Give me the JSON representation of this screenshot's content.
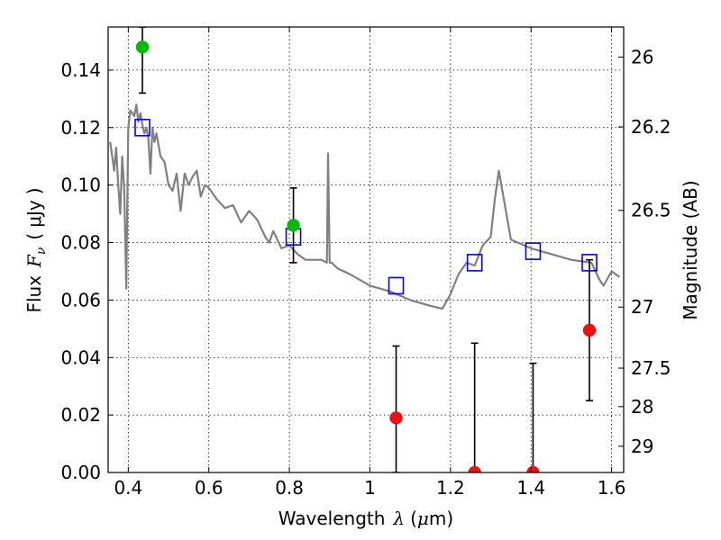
{
  "chart_data": {
    "type": "scatter",
    "xlabel": "Wavelength",
    "xlabel_symbol": "λ",
    "xlabel_unit_prefix": "μ",
    "xlabel_unit": "m",
    "ylabel": "Flux",
    "ylabel_symbol": "F",
    "ylabel_subscript": "ν",
    "ylabel_unit": "μJy",
    "y2label": "Magnitude (AB)",
    "xlim": [
      0.35,
      1.63
    ],
    "ylim": [
      0.0,
      0.155
    ],
    "grid": true,
    "x_ticks": [
      {
        "value": 0.4,
        "label": "0.4"
      },
      {
        "value": 0.6,
        "label": "0.6"
      },
      {
        "value": 0.8,
        "label": "0.8"
      },
      {
        "value": 1.0,
        "label": "1"
      },
      {
        "value": 1.2,
        "label": "1.2"
      },
      {
        "value": 1.4,
        "label": "1.4"
      },
      {
        "value": 1.6,
        "label": "1.6"
      }
    ],
    "y_ticks": [
      {
        "value": 0.0,
        "label": "0.00"
      },
      {
        "value": 0.02,
        "label": "0.02"
      },
      {
        "value": 0.04,
        "label": "0.04"
      },
      {
        "value": 0.06,
        "label": "0.06"
      },
      {
        "value": 0.08,
        "label": "0.08"
      },
      {
        "value": 0.1,
        "label": "0.10"
      },
      {
        "value": 0.12,
        "label": "0.12"
      },
      {
        "value": 0.14,
        "label": "0.14"
      }
    ],
    "y2_ticks": [
      {
        "mag": 26,
        "label": "26"
      },
      {
        "mag": 26.2,
        "label": "26.2"
      },
      {
        "mag": 26.5,
        "label": "26.5"
      },
      {
        "mag": 27,
        "label": "27"
      },
      {
        "mag": 27.5,
        "label": "27.5"
      },
      {
        "mag": 28,
        "label": "28"
      },
      {
        "mag": 29,
        "label": "29"
      }
    ],
    "series": [
      {
        "kind": "line",
        "color": "#808080",
        "x": [
          0.355,
          0.36,
          0.365,
          0.37,
          0.375,
          0.38,
          0.385,
          0.39,
          0.395,
          0.4,
          0.405,
          0.41,
          0.415,
          0.42,
          0.425,
          0.43,
          0.435,
          0.44,
          0.445,
          0.45,
          0.455,
          0.46,
          0.465,
          0.47,
          0.48,
          0.49,
          0.5,
          0.51,
          0.52,
          0.53,
          0.54,
          0.55,
          0.56,
          0.57,
          0.58,
          0.59,
          0.6,
          0.62,
          0.64,
          0.66,
          0.68,
          0.7,
          0.72,
          0.74,
          0.75,
          0.76,
          0.78,
          0.8,
          0.82,
          0.84,
          0.86,
          0.88,
          0.893,
          0.896,
          0.9,
          0.905,
          0.92,
          0.95,
          1.0,
          1.05,
          1.1,
          1.15,
          1.18,
          1.2,
          1.22,
          1.24,
          1.26,
          1.28,
          1.3,
          1.31,
          1.32,
          1.35,
          1.4,
          1.45,
          1.5,
          1.55,
          1.57,
          1.58,
          1.6,
          1.62
        ],
        "y": [
          0.115,
          0.11,
          0.105,
          0.113,
          0.1,
          0.09,
          0.11,
          0.098,
          0.064,
          0.12,
          0.126,
          0.125,
          0.124,
          0.128,
          0.122,
          0.125,
          0.121,
          0.118,
          0.12,
          0.116,
          0.104,
          0.12,
          0.115,
          0.118,
          0.11,
          0.108,
          0.1,
          0.098,
          0.104,
          0.091,
          0.104,
          0.1,
          0.103,
          0.105,
          0.096,
          0.1,
          0.099,
          0.095,
          0.092,
          0.093,
          0.087,
          0.091,
          0.088,
          0.082,
          0.08,
          0.084,
          0.078,
          0.079,
          0.076,
          0.074,
          0.074,
          0.074,
          0.073,
          0.111,
          0.073,
          0.073,
          0.071,
          0.069,
          0.065,
          0.063,
          0.06,
          0.058,
          0.057,
          0.062,
          0.069,
          0.073,
          0.072,
          0.079,
          0.082,
          0.095,
          0.105,
          0.081,
          0.078,
          0.076,
          0.074,
          0.073,
          0.067,
          0.065,
          0.07,
          0.068
        ]
      },
      {
        "kind": "marker",
        "marker": "open-square",
        "color": "#0000ff",
        "x": [
          0.435,
          0.81,
          1.065,
          1.26,
          1.405,
          1.545
        ],
        "y": [
          0.12,
          0.082,
          0.065,
          0.073,
          0.077,
          0.073
        ]
      },
      {
        "kind": "marker",
        "marker": "filled-circle",
        "color": "#00bb00",
        "x": [
          0.435,
          0.81
        ],
        "y": [
          0.148,
          0.086
        ],
        "err_low": [
          0.132,
          0.073
        ],
        "err_high": [
          0.155,
          0.099
        ]
      },
      {
        "kind": "marker",
        "marker": "filled-circle",
        "color": "#ee1111",
        "x": [
          1.065,
          1.26,
          1.405,
          1.545
        ],
        "y": [
          0.019,
          0.0,
          0.0,
          0.0495
        ],
        "err_low": [
          0.0,
          0.0,
          0.0,
          0.025
        ],
        "err_high": [
          0.044,
          0.045,
          0.038,
          0.074
        ]
      }
    ]
  }
}
